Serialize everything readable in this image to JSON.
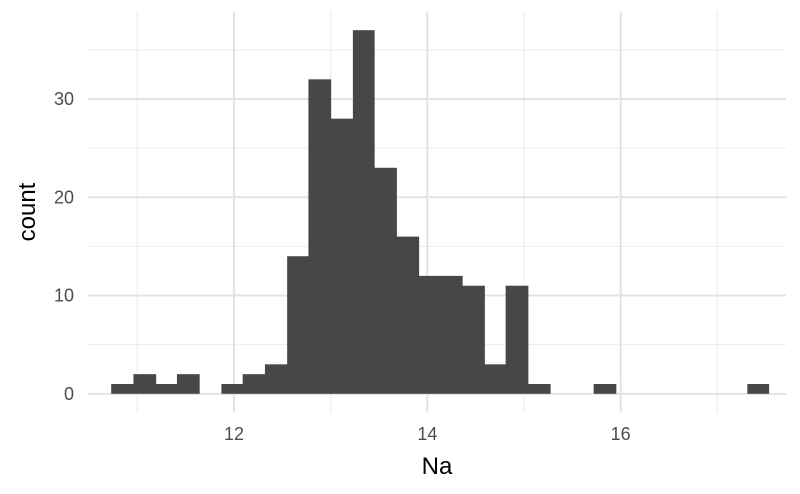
{
  "chart_data": {
    "type": "bar",
    "title": "",
    "xlabel": "Na",
    "ylabel": "count",
    "xlim": [
      10.49,
      17.71
    ],
    "ylim": [
      -1.85,
      38.85
    ],
    "x_ticks": [
      12,
      14,
      16
    ],
    "x_minor_ticks": [
      11,
      13,
      15,
      17
    ],
    "y_ticks": [
      0,
      10,
      20,
      30
    ],
    "y_minor_ticks": [
      5,
      15,
      25,
      35
    ],
    "grid": true,
    "legend": "none",
    "bar_color": "#474747",
    "bin_width": 0.2267,
    "bins": [
      {
        "x0": 10.73,
        "x1": 10.96,
        "count": 1
      },
      {
        "x0": 10.96,
        "x1": 11.19,
        "count": 2
      },
      {
        "x0": 11.19,
        "x1": 11.41,
        "count": 1
      },
      {
        "x0": 11.41,
        "x1": 11.64,
        "count": 2
      },
      {
        "x0": 11.64,
        "x1": 11.87,
        "count": 0
      },
      {
        "x0": 11.87,
        "x1": 12.09,
        "count": 1
      },
      {
        "x0": 12.09,
        "x1": 12.32,
        "count": 2
      },
      {
        "x0": 12.32,
        "x1": 12.55,
        "count": 3
      },
      {
        "x0": 12.55,
        "x1": 12.77,
        "count": 14
      },
      {
        "x0": 12.77,
        "x1": 13.0,
        "count": 32
      },
      {
        "x0": 13.0,
        "x1": 13.23,
        "count": 28
      },
      {
        "x0": 13.23,
        "x1": 13.45,
        "count": 37
      },
      {
        "x0": 13.45,
        "x1": 13.68,
        "count": 23
      },
      {
        "x0": 13.68,
        "x1": 13.91,
        "count": 16
      },
      {
        "x0": 13.91,
        "x1": 14.13,
        "count": 12
      },
      {
        "x0": 14.13,
        "x1": 14.36,
        "count": 12
      },
      {
        "x0": 14.36,
        "x1": 14.59,
        "count": 11
      },
      {
        "x0": 14.59,
        "x1": 14.81,
        "count": 3
      },
      {
        "x0": 14.81,
        "x1": 15.04,
        "count": 11
      },
      {
        "x0": 15.04,
        "x1": 15.27,
        "count": 1
      },
      {
        "x0": 15.27,
        "x1": 15.49,
        "count": 0
      },
      {
        "x0": 15.49,
        "x1": 15.72,
        "count": 0
      },
      {
        "x0": 15.72,
        "x1": 15.95,
        "count": 1
      },
      {
        "x0": 15.95,
        "x1": 16.17,
        "count": 0
      },
      {
        "x0": 16.17,
        "x1": 16.4,
        "count": 0
      },
      {
        "x0": 16.4,
        "x1": 16.63,
        "count": 0
      },
      {
        "x0": 16.63,
        "x1": 16.85,
        "count": 0
      },
      {
        "x0": 16.85,
        "x1": 17.08,
        "count": 0
      },
      {
        "x0": 17.08,
        "x1": 17.31,
        "count": 0
      },
      {
        "x0": 17.31,
        "x1": 17.53,
        "count": 1
      }
    ]
  }
}
